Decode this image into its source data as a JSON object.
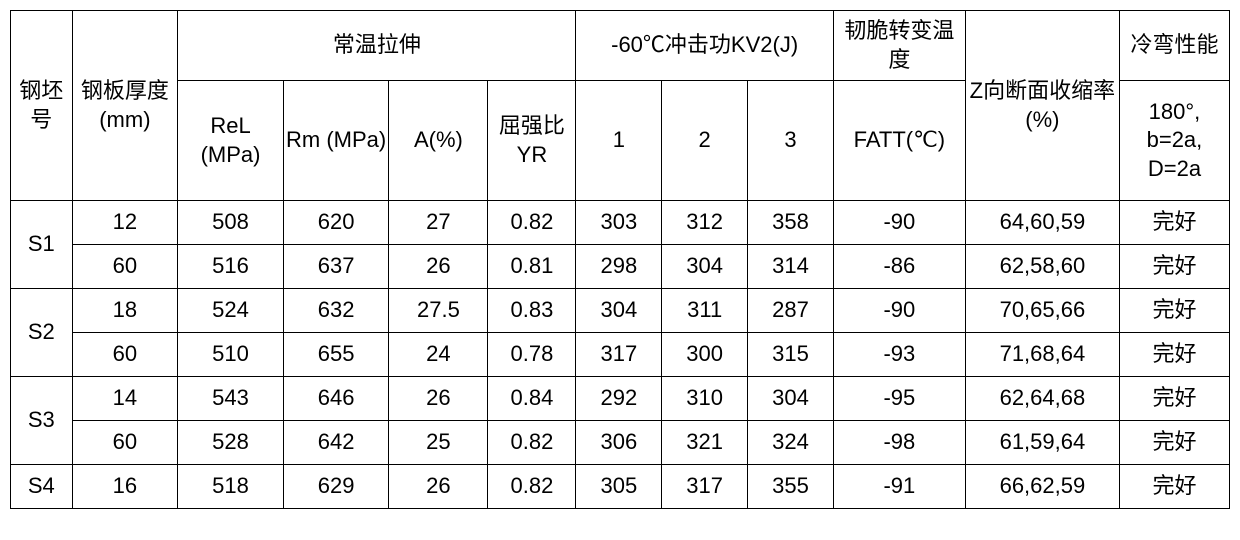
{
  "table": {
    "background_color": "#ffffff",
    "border_color": "#000000",
    "font_size": 22,
    "headers": {
      "billet_no": "钢坯号",
      "thickness": "钢板厚度(mm)",
      "tensile_group": "常温拉伸",
      "rel": "ReL (MPa)",
      "rm": "Rm (MPa)",
      "a": "A(%)",
      "yr": "屈强比YR",
      "impact_group": "-60℃冲击功KV2(J)",
      "kv1": "1",
      "kv2": "2",
      "kv3": "3",
      "dbtt_group": "韧脆转变温度",
      "fatt": "FATT(℃)",
      "z": "Z向断面收缩率(%)",
      "cold_group": "冷弯性能",
      "cold_sub": "180°, b=2a, D=2a"
    },
    "rows": [
      {
        "id": "S1",
        "thk": "12",
        "rel": "508",
        "rm": "620",
        "a": "27",
        "yr": "0.82",
        "kv1": "303",
        "kv2": "312",
        "kv3": "358",
        "fatt": "-90",
        "z": "64,60,59",
        "cold": "完好"
      },
      {
        "id": "",
        "thk": "60",
        "rel": "516",
        "rm": "637",
        "a": "26",
        "yr": "0.81",
        "kv1": "298",
        "kv2": "304",
        "kv3": "314",
        "fatt": "-86",
        "z": "62,58,60",
        "cold": "完好"
      },
      {
        "id": "S2",
        "thk": "18",
        "rel": "524",
        "rm": "632",
        "a": "27.5",
        "yr": "0.83",
        "kv1": "304",
        "kv2": "311",
        "kv3": "287",
        "fatt": "-90",
        "z": "70,65,66",
        "cold": "完好"
      },
      {
        "id": "",
        "thk": "60",
        "rel": "510",
        "rm": "655",
        "a": "24",
        "yr": "0.78",
        "kv1": "317",
        "kv2": "300",
        "kv3": "315",
        "fatt": "-93",
        "z": "71,68,64",
        "cold": "完好"
      },
      {
        "id": "S3",
        "thk": "14",
        "rel": "543",
        "rm": "646",
        "a": "26",
        "yr": "0.84",
        "kv1": "292",
        "kv2": "310",
        "kv3": "304",
        "fatt": "-95",
        "z": "62,64,68",
        "cold": "完好"
      },
      {
        "id": "",
        "thk": "60",
        "rel": "528",
        "rm": "642",
        "a": "25",
        "yr": "0.82",
        "kv1": "306",
        "kv2": "321",
        "kv3": "324",
        "fatt": "-98",
        "z": "61,59,64",
        "cold": "完好"
      },
      {
        "id": "S4",
        "thk": "16",
        "rel": "518",
        "rm": "629",
        "a": "26",
        "yr": "0.82",
        "kv1": "305",
        "kv2": "317",
        "kv3": "355",
        "fatt": "-91",
        "z": "66,62,59",
        "cold": "完好"
      }
    ],
    "rowspan_ids": {
      "0": 2,
      "2": 2,
      "4": 2,
      "6": 1
    }
  }
}
